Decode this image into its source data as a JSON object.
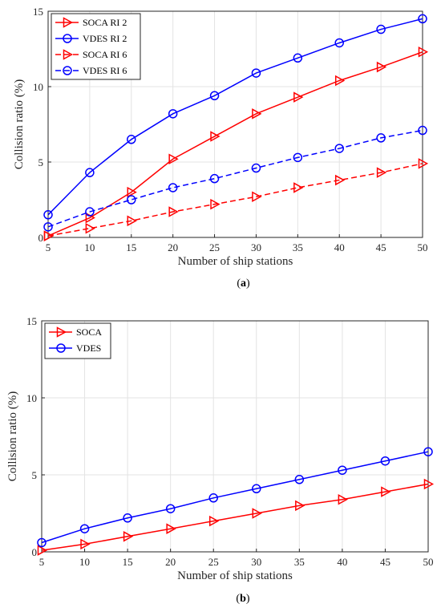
{
  "chart_data": [
    {
      "type": "line",
      "panel_label": "a",
      "xlabel": "Number of ship stations",
      "ylabel": "Collision ratio (%)",
      "x": [
        5,
        10,
        15,
        20,
        25,
        30,
        35,
        40,
        45,
        50
      ],
      "xlim": [
        5,
        50
      ],
      "ylim": [
        0,
        15
      ],
      "xticks": [
        "5",
        "10",
        "15",
        "20",
        "25",
        "30",
        "35",
        "40",
        "45",
        "50"
      ],
      "yticks": [
        "0",
        "5",
        "10",
        "15"
      ],
      "grid": true,
      "legend_position": "top-left",
      "series": [
        {
          "name": "SOCA RI 2",
          "color": "#ff0000",
          "marker": "triangle-right",
          "dash": "solid",
          "values": [
            0.1,
            1.3,
            3.0,
            5.2,
            6.7,
            8.2,
            9.3,
            10.4,
            11.3,
            12.3
          ]
        },
        {
          "name": "VDES RI 2",
          "color": "#0000ff",
          "marker": "circle",
          "dash": "solid",
          "values": [
            1.5,
            4.3,
            6.5,
            8.2,
            9.4,
            10.9,
            11.9,
            12.9,
            13.8,
            14.5
          ]
        },
        {
          "name": "SOCA RI 6",
          "color": "#ff0000",
          "marker": "triangle-right",
          "dash": "dashed",
          "values": [
            0.1,
            0.6,
            1.1,
            1.7,
            2.2,
            2.7,
            3.3,
            3.8,
            4.3,
            4.9
          ]
        },
        {
          "name": "VDES RI 6",
          "color": "#0000ff",
          "marker": "circle",
          "dash": "dashed",
          "values": [
            0.7,
            1.7,
            2.5,
            3.3,
            3.9,
            4.6,
            5.3,
            5.9,
            6.6,
            7.1
          ]
        }
      ]
    },
    {
      "type": "line",
      "panel_label": "b",
      "xlabel": "Number of ship stations",
      "ylabel": "Collision ratio (%)",
      "x": [
        5,
        10,
        15,
        20,
        25,
        30,
        35,
        40,
        45,
        50
      ],
      "xlim": [
        5,
        50
      ],
      "ylim": [
        0,
        15
      ],
      "xticks": [
        "5",
        "10",
        "15",
        "20",
        "25",
        "30",
        "35",
        "40",
        "45",
        "50"
      ],
      "yticks": [
        "0",
        "5",
        "10",
        "15"
      ],
      "grid": true,
      "legend_position": "top-left",
      "series": [
        {
          "name": "SOCA",
          "color": "#ff0000",
          "marker": "triangle-right",
          "dash": "solid",
          "values": [
            0.1,
            0.5,
            1.0,
            1.5,
            2.0,
            2.5,
            3.0,
            3.4,
            3.9,
            4.4
          ]
        },
        {
          "name": "VDES",
          "color": "#0000ff",
          "marker": "circle",
          "dash": "solid",
          "values": [
            0.6,
            1.5,
            2.2,
            2.8,
            3.5,
            4.1,
            4.7,
            5.3,
            5.9,
            6.5
          ]
        }
      ]
    }
  ]
}
